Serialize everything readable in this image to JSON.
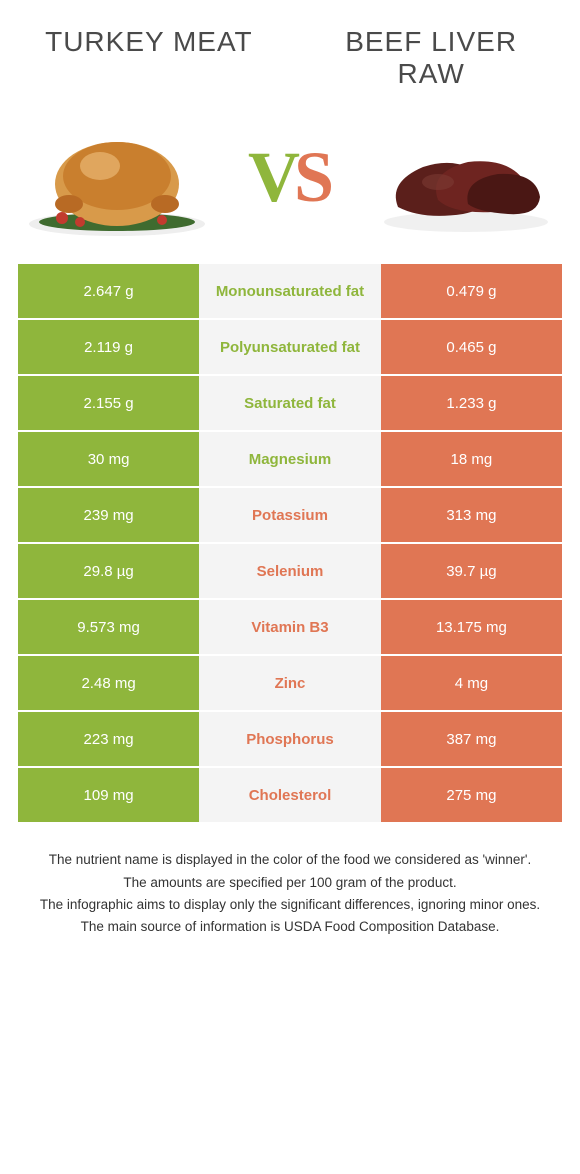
{
  "colors": {
    "green": "#8fb63c",
    "orange": "#e07654",
    "mid_bg": "#f4f4f4",
    "title_text": "#4a4a4a",
    "body_bg": "#ffffff"
  },
  "titles": {
    "left": "Turkey meat",
    "right": "Beef Liver Raw"
  },
  "vs": {
    "v": "V",
    "s": "S"
  },
  "rows": [
    {
      "left": "2.647 g",
      "label": "Monounsaturated fat",
      "right": "0.479 g",
      "winner": "left"
    },
    {
      "left": "2.119 g",
      "label": "Polyunsaturated fat",
      "right": "0.465 g",
      "winner": "left"
    },
    {
      "left": "2.155 g",
      "label": "Saturated fat",
      "right": "1.233 g",
      "winner": "left"
    },
    {
      "left": "30 mg",
      "label": "Magnesium",
      "right": "18 mg",
      "winner": "left"
    },
    {
      "left": "239 mg",
      "label": "Potassium",
      "right": "313 mg",
      "winner": "right"
    },
    {
      "left": "29.8 µg",
      "label": "Selenium",
      "right": "39.7 µg",
      "winner": "right"
    },
    {
      "left": "9.573 mg",
      "label": "Vitamin B3",
      "right": "13.175 mg",
      "winner": "right"
    },
    {
      "left": "2.48 mg",
      "label": "Zinc",
      "right": "4 mg",
      "winner": "right"
    },
    {
      "left": "223 mg",
      "label": "Phosphorus",
      "right": "387 mg",
      "winner": "right"
    },
    {
      "left": "109 mg",
      "label": "Cholesterol",
      "right": "275 mg",
      "winner": "right"
    }
  ],
  "footnotes": [
    "The nutrient name is displayed in the color of the food we considered as 'winner'.",
    "The amounts are specified per 100 gram of the product.",
    "The infographic aims to display only the significant differences, ignoring minor ones.",
    "The main source of information is USDA Food Composition Database."
  ]
}
